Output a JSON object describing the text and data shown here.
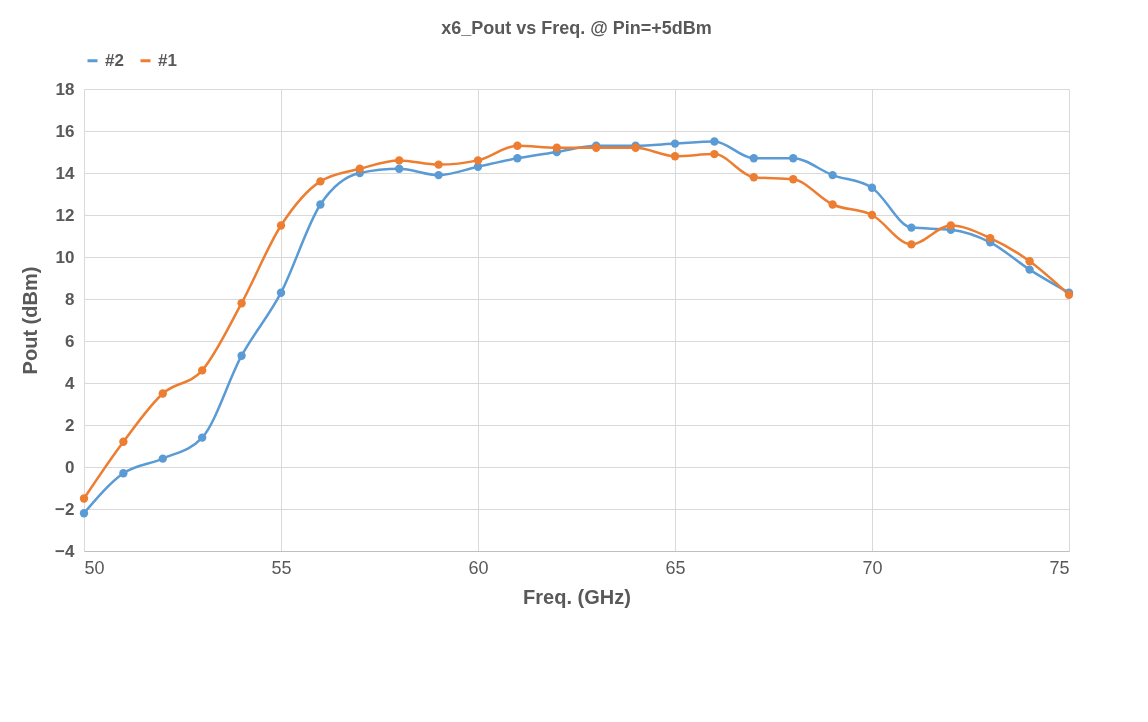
{
  "chart_data": {
    "type": "line",
    "title": "x6_Pout vs Freq. @ Pin=+5dBm",
    "xlabel": "Freq. (GHz)",
    "ylabel": "Pout (dBm)",
    "x": [
      50,
      51,
      52,
      53,
      54,
      55,
      56,
      57,
      58,
      59,
      60,
      61,
      62,
      63,
      64,
      65,
      66,
      67,
      68,
      69,
      70,
      71,
      72,
      73,
      74,
      75
    ],
    "series": [
      {
        "name": "#2",
        "color": "#5b9bd5",
        "values": [
          -2.2,
          -0.3,
          0.4,
          1.4,
          5.3,
          8.3,
          12.5,
          14.0,
          14.2,
          13.9,
          14.3,
          14.7,
          15.0,
          15.3,
          15.3,
          15.4,
          15.5,
          14.7,
          14.7,
          13.9,
          13.3,
          11.4,
          11.3,
          10.7,
          9.4,
          8.3
        ]
      },
      {
        "name": "#1",
        "color": "#ed7d31",
        "values": [
          -1.5,
          1.2,
          3.5,
          4.6,
          7.8,
          11.5,
          13.6,
          14.2,
          14.6,
          14.4,
          14.6,
          15.3,
          15.2,
          15.2,
          15.2,
          14.8,
          14.9,
          13.8,
          13.7,
          12.5,
          12.0,
          10.6,
          11.5,
          10.9,
          9.8,
          8.2
        ]
      }
    ],
    "xlim": [
      50,
      75
    ],
    "xticks": [
      50,
      55,
      60,
      65,
      70,
      75
    ],
    "ylim": [
      -4,
      18
    ],
    "yticks": [
      -4,
      -2,
      0,
      2,
      4,
      6,
      8,
      10,
      12,
      14,
      16,
      18
    ],
    "grid": true,
    "legend": "top",
    "marker": "circle",
    "line_style": "solid"
  }
}
